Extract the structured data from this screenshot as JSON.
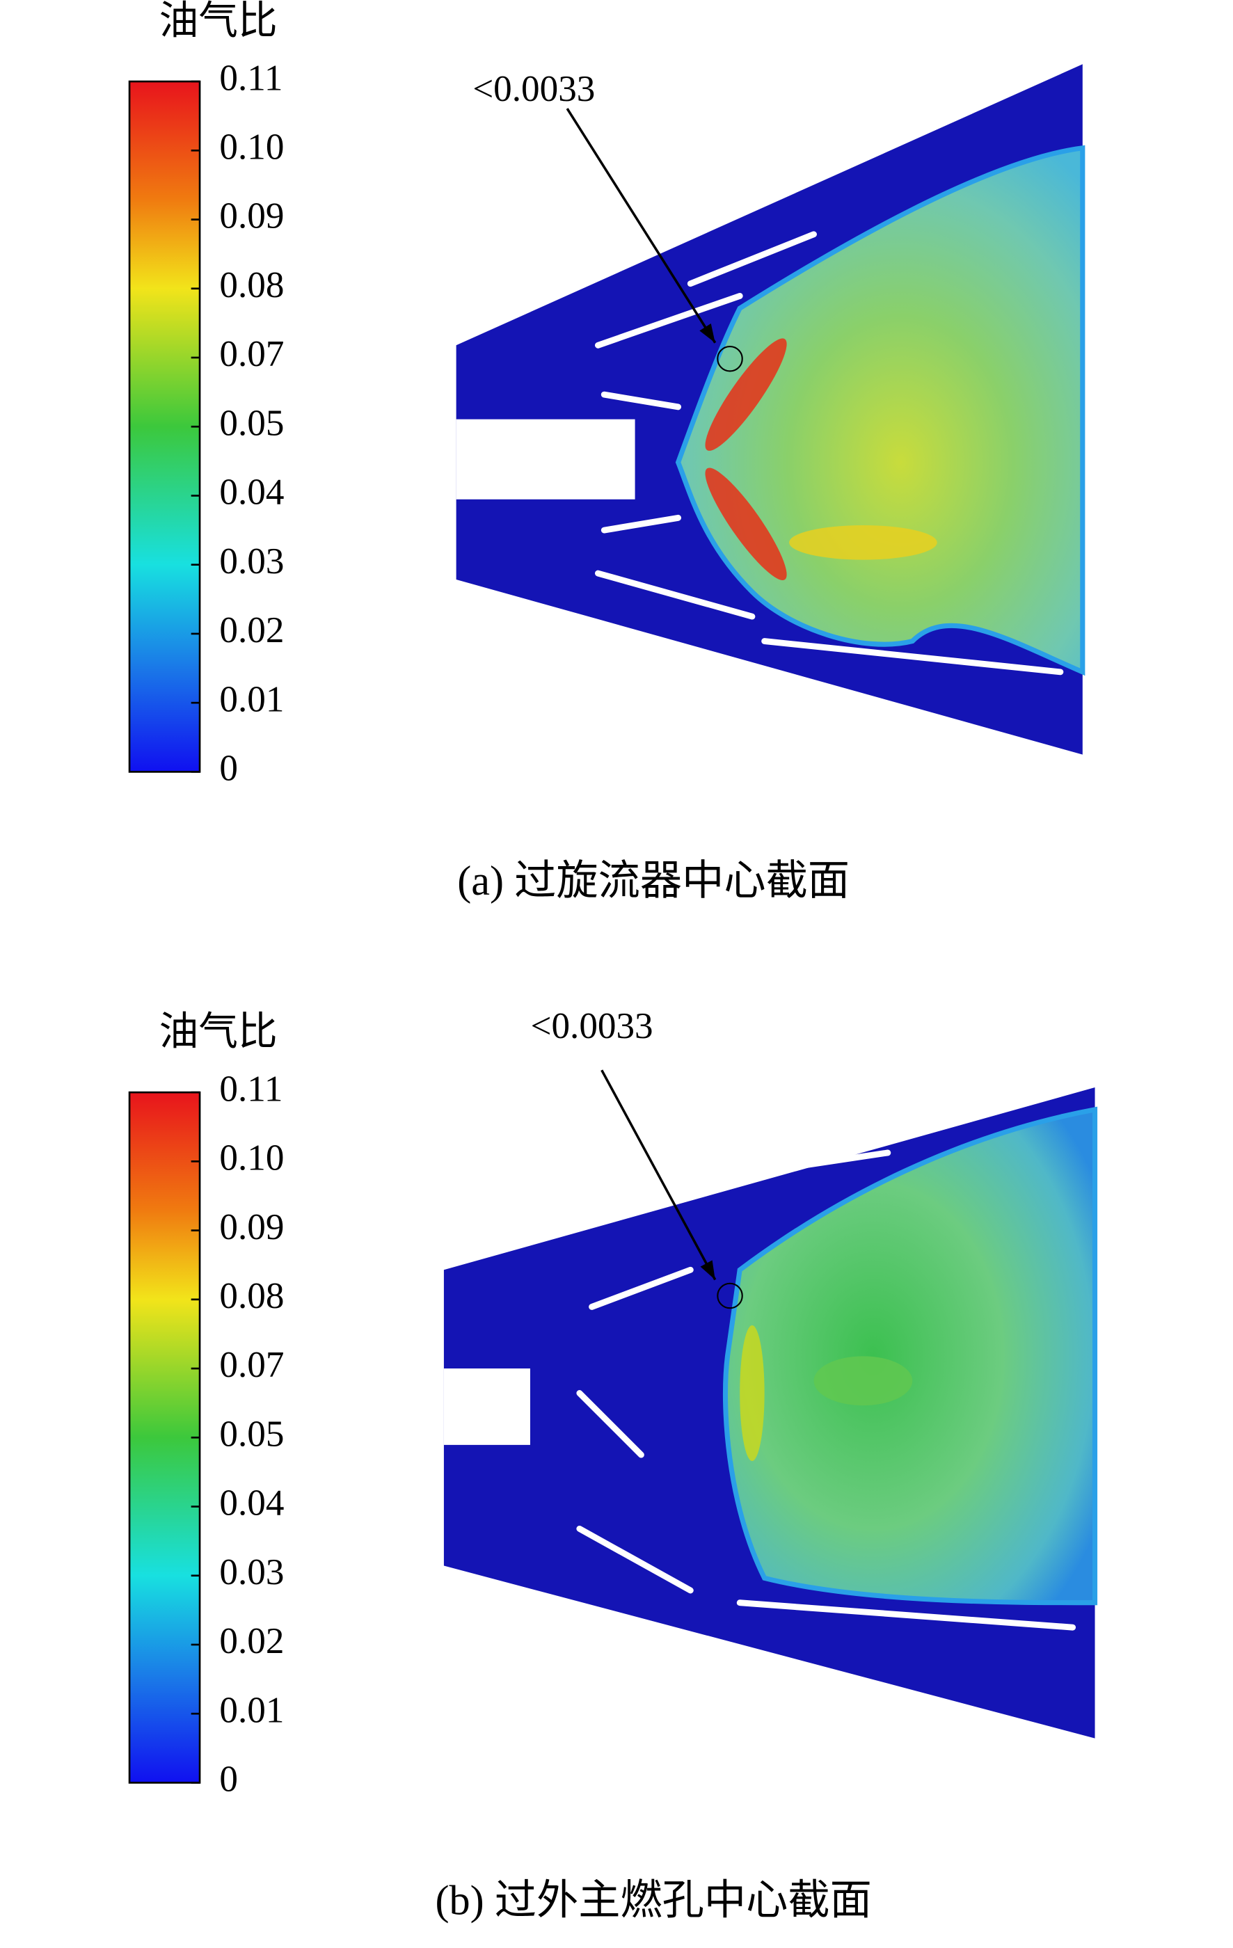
{
  "panels": [
    {
      "colorbar": {
        "title": "油气比",
        "ticks": [
          "0.11",
          "0.10",
          "0.09",
          "0.08",
          "0.07",
          "0.05",
          "0.04",
          "0.03",
          "0.02",
          "0.01",
          "0"
        ]
      },
      "annotation": "<0.0033",
      "caption": "(a) 过旋流器中心截面"
    },
    {
      "colorbar": {
        "title": "油气比",
        "ticks": [
          "0.11",
          "0.10",
          "0.09",
          "0.08",
          "0.07",
          "0.05",
          "0.04",
          "0.03",
          "0.02",
          "0.01",
          "0"
        ]
      },
      "annotation": "<0.0033",
      "caption": "(b) 过外主燃孔中心截面"
    }
  ]
}
